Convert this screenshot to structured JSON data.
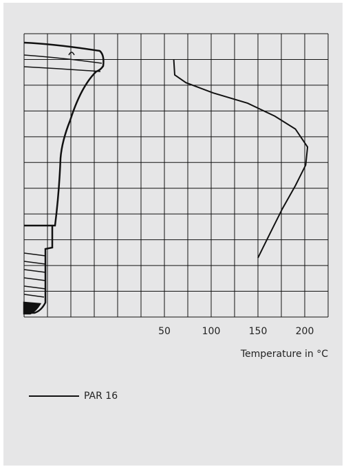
{
  "chart_data": {
    "type": "line",
    "xlabel": "Temperature in  °C",
    "x_grid": [
      -100,
      -75,
      -50,
      -25,
      0,
      25,
      50,
      75,
      100,
      125,
      150,
      175,
      200,
      225
    ],
    "y_grid": [
      0,
      1,
      2,
      3,
      4,
      5,
      6,
      7,
      8,
      9,
      10,
      11
    ],
    "xlim": [
      -100,
      225
    ],
    "ylim": [
      0,
      11
    ],
    "xticks": [
      50,
      100,
      150,
      200
    ],
    "grid": true,
    "series": [
      {
        "name": "PAR 16",
        "color": "#111111",
        "x": [
          60,
          61,
          73,
          102,
          139,
          168,
          190,
          203,
          201,
          190,
          176,
          165,
          150
        ],
        "values": [
          10,
          9.4,
          9.1,
          8.7,
          8.3,
          7.8,
          7.3,
          6.6,
          5.9,
          5.1,
          4.2,
          3.4,
          2.3
        ]
      }
    ]
  }
}
